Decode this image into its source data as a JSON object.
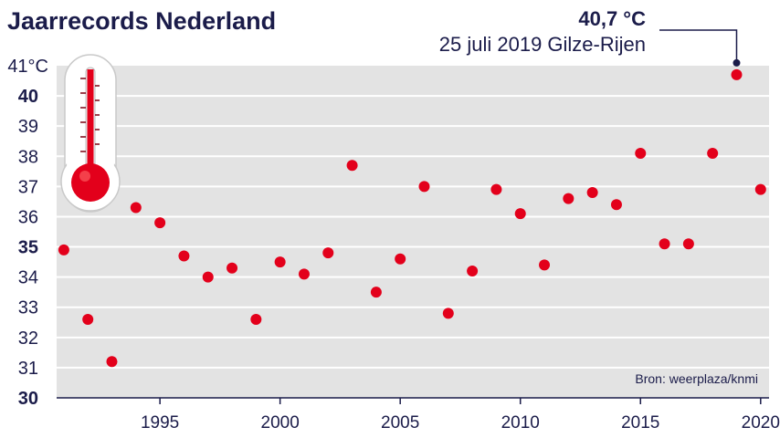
{
  "chart_data": {
    "type": "scatter",
    "title": "Jaarrecords Nederland",
    "xlabel": "",
    "ylabel": "",
    "xlim": [
      1991,
      2020
    ],
    "ylim": [
      30,
      41
    ],
    "x_ticks": [
      {
        "value": 1995,
        "label": "1995"
      },
      {
        "value": 2000,
        "label": "2000"
      },
      {
        "value": 2005,
        "label": "2005"
      },
      {
        "value": 2010,
        "label": "2010"
      },
      {
        "value": 2015,
        "label": "2015"
      },
      {
        "value": 2020,
        "label": "2020"
      }
    ],
    "y_ticks": [
      {
        "value": 30,
        "label": "30",
        "bold": true
      },
      {
        "value": 31,
        "label": "31",
        "bold": false
      },
      {
        "value": 32,
        "label": "32",
        "bold": false
      },
      {
        "value": 33,
        "label": "33",
        "bold": false
      },
      {
        "value": 34,
        "label": "34",
        "bold": false
      },
      {
        "value": 35,
        "label": "35",
        "bold": true
      },
      {
        "value": 36,
        "label": "36",
        "bold": false
      },
      {
        "value": 37,
        "label": "37",
        "bold": false
      },
      {
        "value": 38,
        "label": "38",
        "bold": false
      },
      {
        "value": 39,
        "label": "39",
        "bold": false
      },
      {
        "value": 40,
        "label": "40",
        "bold": true
      },
      {
        "value": 41,
        "label": "41°C",
        "bold": false
      }
    ],
    "grid": true,
    "x": [
      1991,
      1992,
      1993,
      1994,
      1995,
      1996,
      1997,
      1998,
      1999,
      2000,
      2001,
      2002,
      2003,
      2004,
      2005,
      2006,
      2007,
      2008,
      2009,
      2010,
      2011,
      2012,
      2013,
      2014,
      2015,
      2016,
      2017,
      2018,
      2019,
      2020
    ],
    "y": [
      34.9,
      32.6,
      31.2,
      36.3,
      35.8,
      34.7,
      34.0,
      34.3,
      32.6,
      34.5,
      34.1,
      34.8,
      37.7,
      33.5,
      34.6,
      37.0,
      32.8,
      34.2,
      36.9,
      36.1,
      34.4,
      36.6,
      36.8,
      36.4,
      38.1,
      35.1,
      35.1,
      38.1,
      40.7,
      36.9
    ],
    "annotation": {
      "x": 2019,
      "y": 40.7,
      "value": "40,7 °C",
      "text": "25 juli 2019 Gilze-Rijen"
    },
    "source": "Bron: weerplaza/knmi",
    "icon": "thermometer-icon"
  },
  "colors": {
    "plot_bg": "#e3e3e3",
    "grid": "#ffffff",
    "point": "#e3001b",
    "text": "#1b1c4a",
    "thermometer_fill": "#e3001b"
  }
}
